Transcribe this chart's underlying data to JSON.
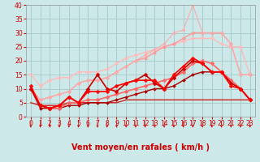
{
  "title": "",
  "xlabel": "Vent moyen/en rafales ( km/h )",
  "xlim": [
    -0.5,
    23.5
  ],
  "ylim": [
    0,
    40
  ],
  "yticks": [
    0,
    5,
    10,
    15,
    20,
    25,
    30,
    35,
    40
  ],
  "xticks": [
    0,
    1,
    2,
    3,
    4,
    5,
    6,
    7,
    8,
    9,
    10,
    11,
    12,
    13,
    14,
    15,
    16,
    17,
    18,
    19,
    20,
    21,
    22,
    23
  ],
  "bg_color": "#cce8e8",
  "grid_color": "#aacccc",
  "series": [
    {
      "x": [
        0,
        1,
        2,
        3,
        4,
        5,
        6,
        7,
        8,
        9,
        10,
        11,
        12,
        13,
        14,
        15,
        16,
        17,
        18,
        19,
        20,
        21,
        22,
        23
      ],
      "y": [
        15,
        11,
        13,
        14,
        14,
        16,
        16,
        16,
        17,
        19,
        21,
        22,
        23,
        24,
        25,
        26,
        27,
        28,
        28,
        28,
        26,
        25,
        25,
        15
      ],
      "color": "#ffbbbb",
      "lw": 1.0,
      "marker": "o",
      "ms": 2.5,
      "zorder": 2
    },
    {
      "x": [
        0,
        1,
        2,
        3,
        4,
        5,
        6,
        7,
        8,
        9,
        10,
        11,
        12,
        13,
        14,
        15,
        16,
        17,
        18,
        19,
        20,
        21,
        22,
        23
      ],
      "y": [
        10,
        6,
        7,
        8,
        9,
        12,
        13,
        13,
        14,
        16,
        18,
        20,
        21,
        23,
        25,
        26,
        28,
        30,
        30,
        30,
        30,
        26,
        15,
        15
      ],
      "color": "#ff9999",
      "lw": 1.0,
      "marker": "o",
      "ms": 2.5,
      "zorder": 2
    },
    {
      "x": [
        0,
        1,
        2,
        3,
        4,
        5,
        6,
        7,
        8,
        9,
        10,
        11,
        12,
        13,
        14,
        15,
        16,
        17,
        18,
        19,
        20,
        21,
        22,
        23
      ],
      "y": [
        10,
        6,
        7,
        8,
        9,
        12,
        13,
        13,
        14,
        16,
        18,
        20,
        22,
        24,
        26,
        30,
        31,
        40,
        30,
        30,
        30,
        26,
        15,
        15
      ],
      "color": "#ffaaaa",
      "lw": 0.8,
      "marker": "o",
      "ms": 2.0,
      "zorder": 2
    },
    {
      "x": [
        0,
        1,
        2,
        3,
        4,
        5,
        6,
        7,
        8,
        9,
        10,
        11,
        12,
        13,
        14,
        15,
        16,
        17,
        18,
        19,
        20,
        21,
        22,
        23
      ],
      "y": [
        10,
        4,
        3,
        3,
        5,
        5,
        6,
        6,
        7,
        8,
        9,
        10,
        11,
        12,
        13,
        14,
        16,
        19,
        20,
        19,
        16,
        13,
        10,
        6
      ],
      "color": "#ff6666",
      "lw": 1.2,
      "marker": "D",
      "ms": 2.5,
      "zorder": 4
    },
    {
      "x": [
        0,
        1,
        2,
        3,
        4,
        5,
        6,
        7,
        8,
        9,
        10,
        11,
        12,
        13,
        14,
        15,
        16,
        17,
        18,
        19,
        20,
        21,
        22,
        23
      ],
      "y": [
        10,
        4,
        3,
        4,
        7,
        5,
        10,
        15,
        10,
        9,
        12,
        13,
        15,
        12,
        10,
        14,
        17,
        20,
        19,
        16,
        16,
        12,
        10,
        6
      ],
      "color": "#cc0000",
      "lw": 1.2,
      "marker": "D",
      "ms": 2.5,
      "zorder": 4
    },
    {
      "x": [
        0,
        1,
        2,
        3,
        4,
        5,
        6,
        7,
        8,
        9,
        10,
        11,
        12,
        13,
        14,
        15,
        16,
        17,
        18,
        19,
        20,
        21,
        22,
        23
      ],
      "y": [
        11,
        4,
        3,
        4,
        7,
        5,
        9,
        9,
        9,
        11,
        12,
        13,
        13,
        13,
        10,
        15,
        18,
        21,
        19,
        16,
        16,
        11,
        10,
        6
      ],
      "color": "#ff0000",
      "lw": 1.2,
      "marker": "D",
      "ms": 2.5,
      "zorder": 4
    },
    {
      "x": [
        0,
        1,
        2,
        3,
        4,
        5,
        6,
        7,
        8,
        9,
        10,
        11,
        12,
        13,
        14,
        15,
        16,
        17,
        18,
        19,
        20,
        21,
        22,
        23
      ],
      "y": [
        5,
        4,
        4,
        4,
        5,
        5,
        5,
        5,
        5,
        5,
        6,
        6,
        6,
        6,
        6,
        6,
        6,
        6,
        6,
        6,
        6,
        6,
        6,
        6
      ],
      "color": "#cc2222",
      "lw": 1.0,
      "marker": null,
      "ms": 0,
      "zorder": 3
    },
    {
      "x": [
        0,
        1,
        2,
        3,
        4,
        5,
        6,
        7,
        8,
        9,
        10,
        11,
        12,
        13,
        14,
        15,
        16,
        17,
        18,
        19,
        20,
        21,
        22,
        23
      ],
      "y": [
        10,
        3,
        3,
        3,
        4,
        4,
        5,
        5,
        5,
        6,
        7,
        8,
        9,
        10,
        10,
        11,
        13,
        15,
        16,
        16,
        16,
        13,
        10,
        6
      ],
      "color": "#aa0000",
      "lw": 1.0,
      "marker": "D",
      "ms": 2.0,
      "zorder": 3
    }
  ],
  "tick_fontsize": 5.5,
  "xlabel_fontsize": 7,
  "tick_color": "#cc0000",
  "arrows_color": "#cc0000"
}
